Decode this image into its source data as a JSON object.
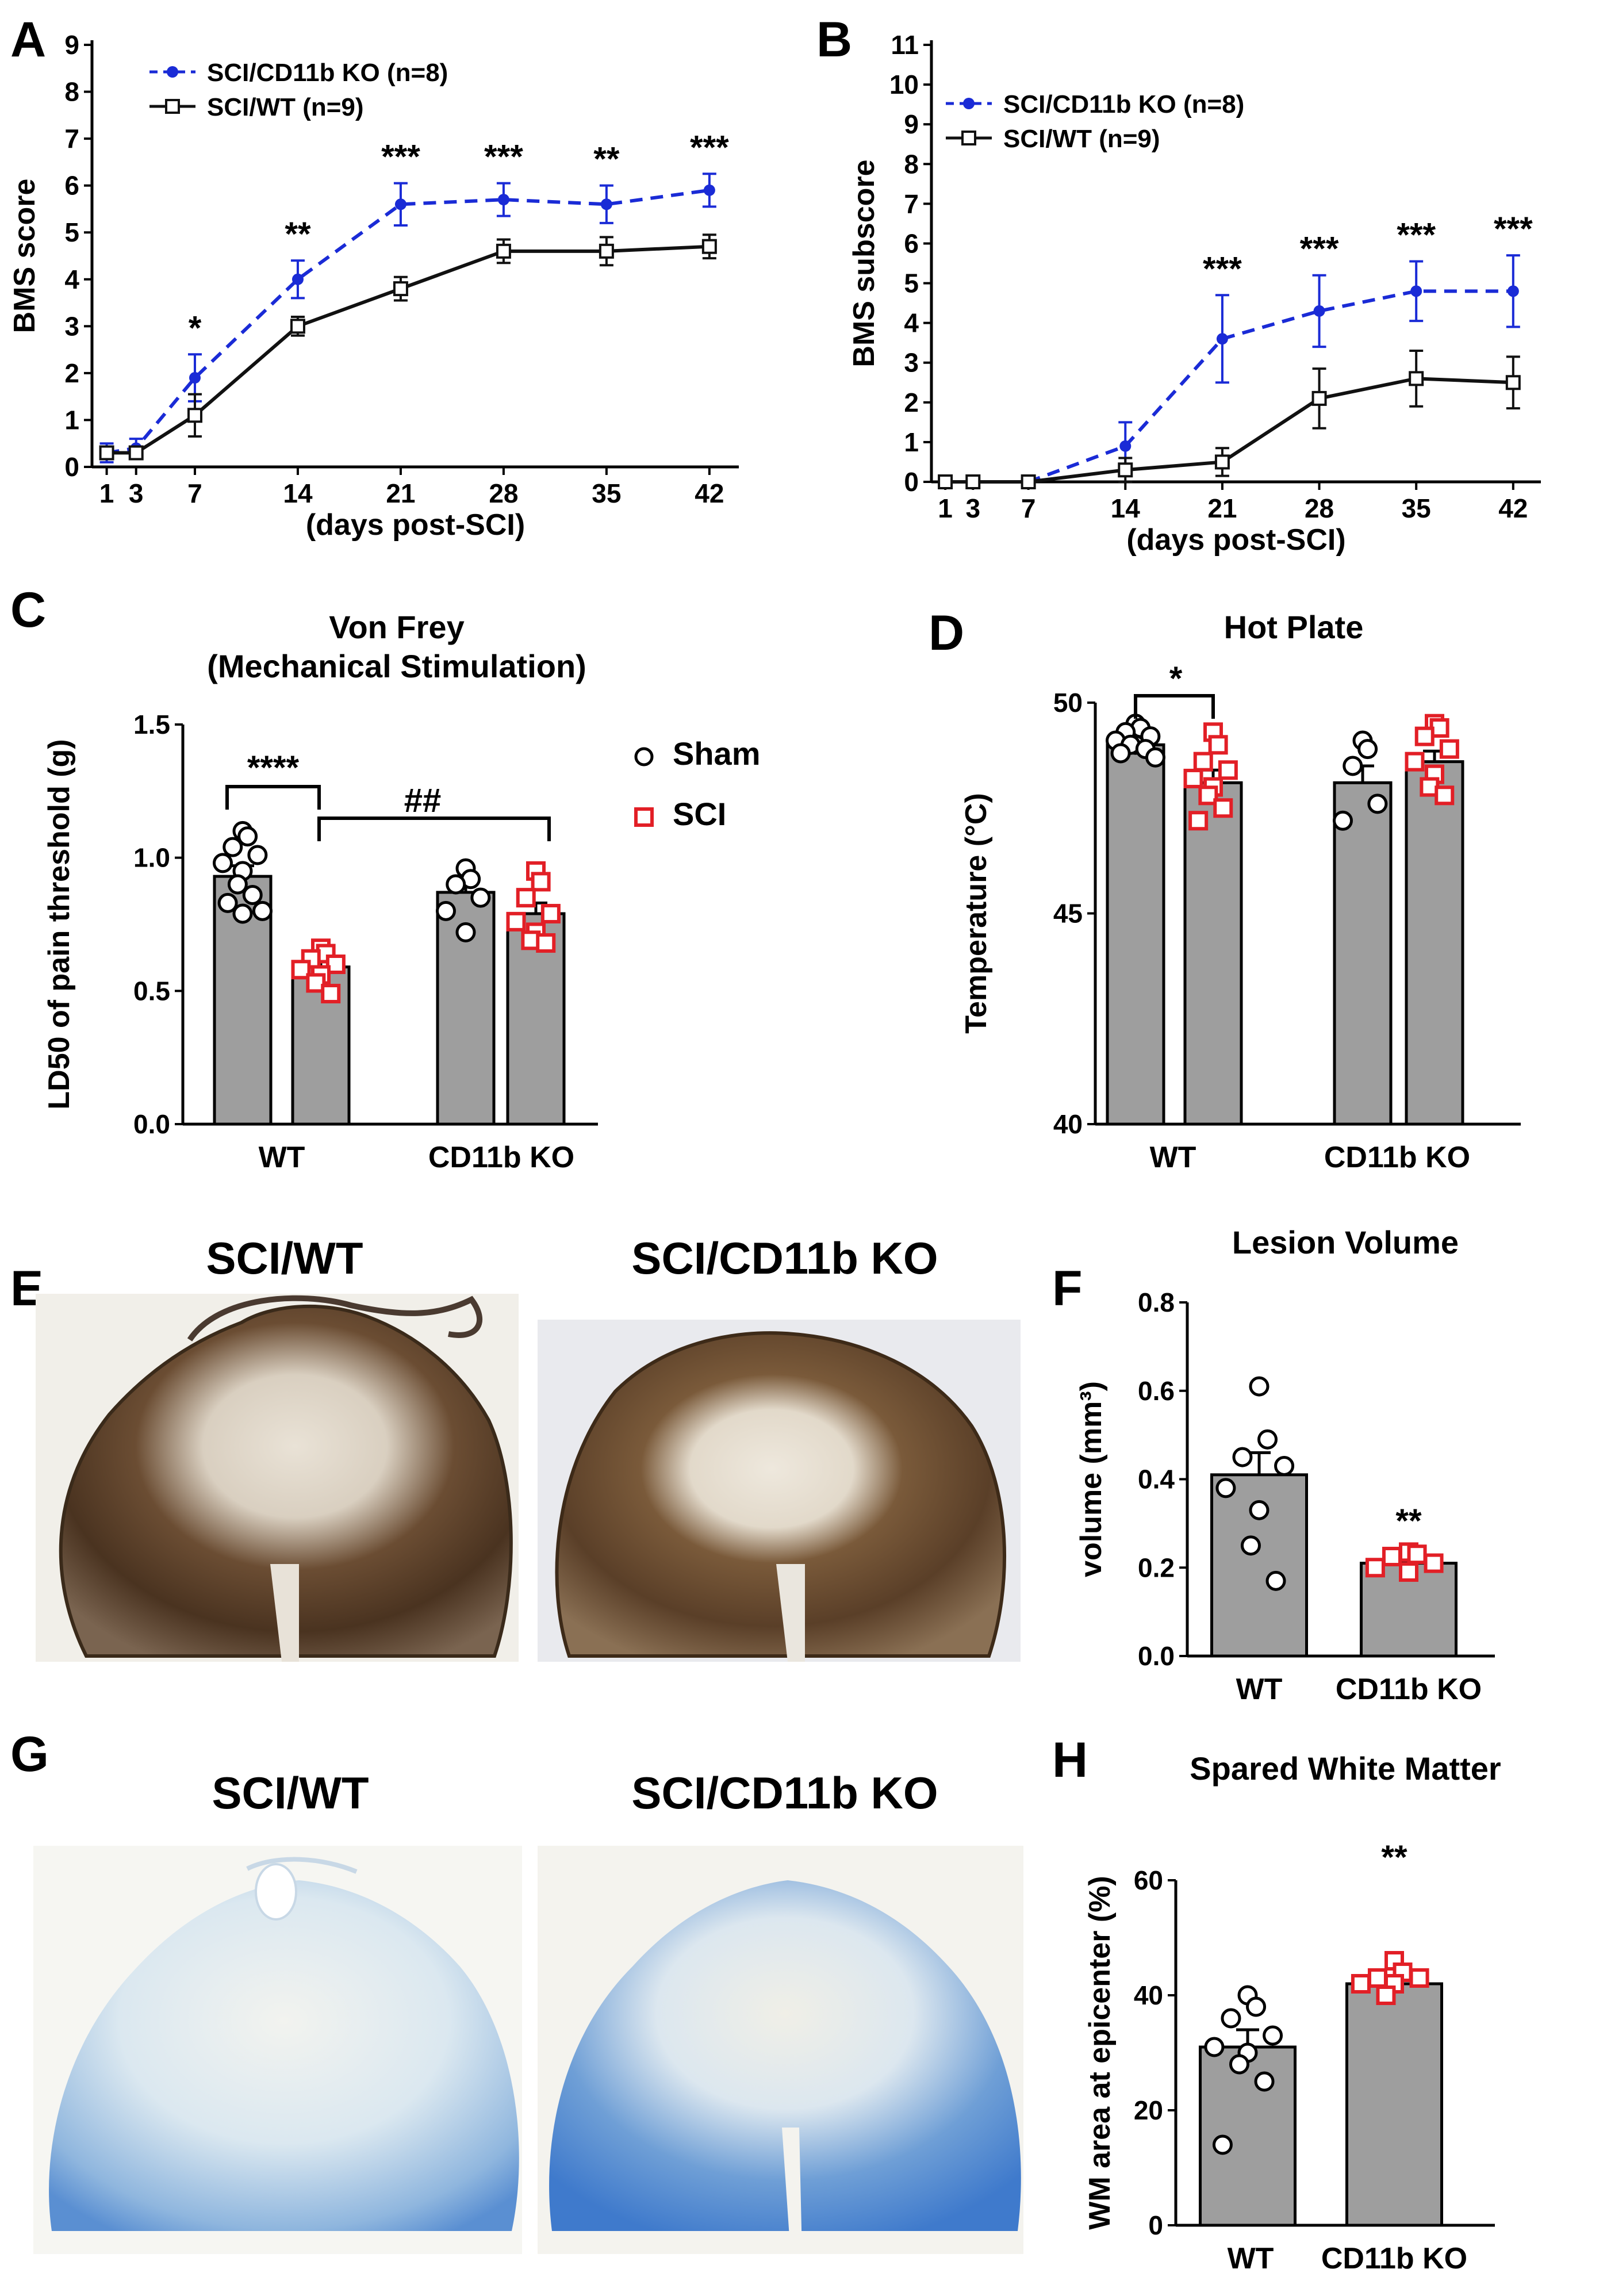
{
  "figure": {
    "panel_labels": [
      "A",
      "B",
      "C",
      "D",
      "E",
      "F",
      "G",
      "H"
    ]
  },
  "micrographs": {
    "E": {
      "left_title": "SCI/WT",
      "right_title": "SCI/CD11b KO",
      "stain": "dark-brown"
    },
    "G": {
      "left_title": "SCI/WT",
      "right_title": "SCI/CD11b KO",
      "stain": "blue"
    }
  },
  "colors": {
    "ko": "#1a2bd6",
    "wt": "#111111",
    "sham": "#000000",
    "sci": "#e21f26",
    "bar": "#9e9e9e"
  },
  "chart_data": [
    {
      "id": "A",
      "type": "line",
      "xlabel": "(days post-SCI)",
      "ylabel": "BMS score",
      "x": [
        1,
        3,
        7,
        14,
        21,
        28,
        35,
        42
      ],
      "xticks": [
        "1",
        "3",
        "7",
        "14",
        "21",
        "28",
        "35",
        "42"
      ],
      "xlim": [
        0,
        44
      ],
      "ylim": [
        0,
        9
      ],
      "yticks": [
        0,
        1,
        2,
        3,
        4,
        5,
        6,
        7,
        8,
        9
      ],
      "series": [
        {
          "name": "SCI/CD11b KO (n=8)",
          "style": "dashed",
          "marker": "dot",
          "values": [
            0.3,
            0.4,
            1.9,
            4.0,
            5.6,
            5.7,
            5.6,
            5.9
          ],
          "errors": [
            0.2,
            0.2,
            0.5,
            0.4,
            0.45,
            0.35,
            0.4,
            0.35
          ]
        },
        {
          "name": "SCI/WT (n=9)",
          "style": "solid",
          "marker": "open-square",
          "values": [
            0.3,
            0.3,
            1.1,
            3.0,
            3.8,
            4.6,
            4.6,
            4.7
          ],
          "errors": [
            0.1,
            0.1,
            0.45,
            0.2,
            0.25,
            0.25,
            0.3,
            0.25
          ]
        }
      ],
      "annotations": [
        {
          "x": 7,
          "text": "*"
        },
        {
          "x": 14,
          "text": "**"
        },
        {
          "x": 21,
          "text": "***"
        },
        {
          "x": 28,
          "text": "***"
        },
        {
          "x": 35,
          "text": "**"
        },
        {
          "x": 42,
          "text": "***"
        }
      ]
    },
    {
      "id": "B",
      "type": "line",
      "xlabel": "(days post-SCI)",
      "ylabel": "BMS subscore",
      "x": [
        1,
        3,
        7,
        14,
        21,
        28,
        35,
        42
      ],
      "xticks": [
        "1",
        "3",
        "7",
        "14",
        "21",
        "28",
        "35",
        "42"
      ],
      "xlim": [
        0,
        44
      ],
      "ylim": [
        0,
        11
      ],
      "yticks": [
        0,
        1,
        2,
        3,
        4,
        5,
        6,
        7,
        8,
        9,
        10,
        11
      ],
      "series": [
        {
          "name": "SCI/CD11b KO (n=8)",
          "style": "dashed",
          "marker": "dot",
          "values": [
            0,
            0,
            0,
            0.9,
            3.6,
            4.3,
            4.8,
            4.8
          ],
          "errors": [
            0,
            0,
            0,
            0.6,
            1.1,
            0.9,
            0.75,
            0.9
          ]
        },
        {
          "name": "SCI/WT (n=9)",
          "style": "solid",
          "marker": "open-square",
          "values": [
            0,
            0,
            0,
            0.3,
            0.5,
            2.1,
            2.6,
            2.5
          ],
          "errors": [
            0,
            0,
            0,
            0.3,
            0.35,
            0.75,
            0.7,
            0.65
          ]
        }
      ],
      "annotations": [
        {
          "x": 21,
          "text": "***"
        },
        {
          "x": 28,
          "text": "***"
        },
        {
          "x": 35,
          "text": "***"
        },
        {
          "x": 42,
          "text": "***"
        }
      ]
    },
    {
      "id": "C",
      "type": "bar",
      "title": "Von Frey",
      "subtitle": "(Mechanical Stimulation)",
      "ylabel": "LD50 of pain threshold (g)",
      "ylim": [
        0,
        1.5
      ],
      "yticks": [
        "0.0",
        "0.5",
        "1.0",
        "1.5"
      ],
      "categories": [
        "WT",
        "CD11b KO"
      ],
      "legend": [
        "Sham",
        "SCI"
      ],
      "bars": [
        {
          "group": "WT",
          "series": "Sham",
          "value": 0.93,
          "error": 0.04,
          "points": [
            1.1,
            1.08,
            1.04,
            1.01,
            0.98,
            0.95,
            0.9,
            0.86,
            0.83,
            0.8,
            0.79
          ]
        },
        {
          "group": "WT",
          "series": "SCI",
          "value": 0.59,
          "error": 0.03,
          "points": [
            0.66,
            0.64,
            0.62,
            0.6,
            0.58,
            0.56,
            0.53,
            0.49
          ]
        },
        {
          "group": "CD11b KO",
          "series": "Sham",
          "value": 0.87,
          "error": 0.04,
          "points": [
            0.96,
            0.92,
            0.9,
            0.85,
            0.8,
            0.72
          ]
        },
        {
          "group": "CD11b KO",
          "series": "SCI",
          "value": 0.79,
          "error": 0.04,
          "points": [
            0.95,
            0.91,
            0.85,
            0.79,
            0.76,
            0.72,
            0.69,
            0.68
          ]
        }
      ],
      "annotations": [
        {
          "between": [
            "WT Sham",
            "WT SCI"
          ],
          "text": "****"
        },
        {
          "between": [
            "WT SCI",
            "CD11b KO SCI"
          ],
          "text": "##"
        }
      ]
    },
    {
      "id": "D",
      "type": "bar",
      "title": "Hot Plate",
      "ylabel": "Temperature (°C)",
      "ylim": [
        40,
        50
      ],
      "yticks": [
        "40",
        "45",
        "50"
      ],
      "categories": [
        "WT",
        "CD11b KO"
      ],
      "legend": [
        "Sham",
        "SCI"
      ],
      "bars": [
        {
          "group": "WT",
          "series": "Sham",
          "value": 49.0,
          "error": 0.1,
          "points": [
            49.5,
            49.4,
            49.3,
            49.2,
            49.1,
            49.0,
            49.0,
            48.9,
            48.8,
            48.7
          ]
        },
        {
          "group": "WT",
          "series": "SCI",
          "value": 48.1,
          "error": 0.3,
          "points": [
            49.3,
            49.0,
            48.6,
            48.4,
            48.2,
            48.0,
            47.8,
            47.5,
            47.2
          ]
        },
        {
          "group": "CD11b KO",
          "series": "Sham",
          "value": 48.1,
          "error": 0.4,
          "points": [
            49.1,
            48.9,
            48.5,
            47.6,
            47.2
          ]
        },
        {
          "group": "CD11b KO",
          "series": "SCI",
          "value": 48.6,
          "error": 0.25,
          "points": [
            49.5,
            49.4,
            49.2,
            48.9,
            48.6,
            48.3,
            48.0,
            47.8
          ]
        }
      ],
      "annotations": [
        {
          "between": [
            "WT Sham",
            "WT SCI"
          ],
          "text": "*"
        }
      ]
    },
    {
      "id": "F",
      "type": "bar",
      "title": "Lesion Volume",
      "ylabel": "volume (mm³)",
      "ylim": [
        0,
        0.8
      ],
      "yticks": [
        "0.0",
        "0.2",
        "0.4",
        "0.6",
        "0.8"
      ],
      "categories": [
        "WT",
        "CD11b KO"
      ],
      "bars": [
        {
          "group": "WT",
          "series": "Sham",
          "value": 0.41,
          "error": 0.05,
          "points": [
            0.61,
            0.49,
            0.45,
            0.43,
            0.38,
            0.33,
            0.25,
            0.17
          ]
        },
        {
          "group": "CD11b KO",
          "series": "SCI",
          "value": 0.21,
          "error": 0.01,
          "points": [
            0.235,
            0.23,
            0.225,
            0.21,
            0.2,
            0.19
          ]
        }
      ],
      "annotations": [
        {
          "over": "CD11b KO",
          "text": "**"
        }
      ]
    },
    {
      "id": "H",
      "type": "bar",
      "title": "Spared White Matter",
      "ylabel": "WM area at epicenter (%)",
      "ylim": [
        0,
        60
      ],
      "yticks": [
        "0",
        "20",
        "40",
        "60"
      ],
      "categories": [
        "WT",
        "CD11b KO"
      ],
      "bars": [
        {
          "group": "WT",
          "series": "Sham",
          "value": 31,
          "error": 3,
          "points": [
            40,
            38,
            36,
            33,
            31,
            30,
            28,
            25,
            14
          ]
        },
        {
          "group": "CD11b KO",
          "series": "SCI",
          "value": 42,
          "error": 1,
          "points": [
            46,
            44,
            43,
            43,
            42,
            42,
            40
          ]
        }
      ],
      "annotations": [
        {
          "over": "CD11b KO",
          "text": "**"
        }
      ]
    }
  ]
}
